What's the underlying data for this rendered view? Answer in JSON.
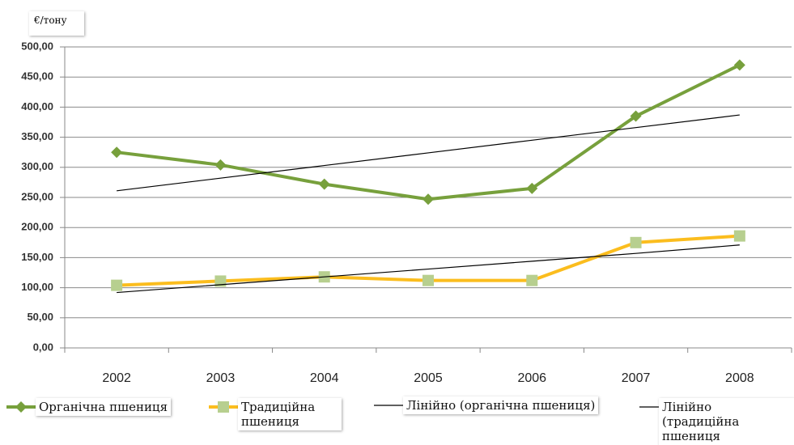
{
  "chart_data": {
    "type": "line",
    "y_label": "€/тону",
    "categories": [
      "2002",
      "2003",
      "2004",
      "2005",
      "2006",
      "2007",
      "2008"
    ],
    "series": [
      {
        "name": "Органічна пшениця",
        "color": "#77a03c",
        "marker": "diamond",
        "marker_color": "#77a03c",
        "values": [
          325,
          304,
          272,
          247,
          265,
          385,
          470
        ]
      },
      {
        "name": "Традиційна пшениця",
        "color": "#fbbd1e",
        "marker": "square",
        "marker_color": "#b7cf8f",
        "values": [
          104,
          111,
          118,
          112,
          112,
          175,
          186
        ]
      },
      {
        "name": "Лінійно (органічна пшениця)",
        "color": "#000000",
        "marker": "none",
        "values": [
          261,
          282,
          303,
          324,
          345,
          366,
          387
        ]
      },
      {
        "name": "Лінійно (традиційна пшениця",
        "color": "#000000",
        "marker": "none",
        "values": [
          92,
          105,
          118,
          131,
          144,
          157,
          171
        ]
      }
    ],
    "ylim": [
      0,
      500
    ],
    "yticks": [
      {
        "value": 0,
        "label": "0,00"
      },
      {
        "value": 50,
        "label": "50,00"
      },
      {
        "value": 100,
        "label": "100,00"
      },
      {
        "value": 150,
        "label": "150,00"
      },
      {
        "value": 200,
        "label": "200,00"
      },
      {
        "value": 250,
        "label": "250,00"
      },
      {
        "value": 300,
        "label": "300,00"
      },
      {
        "value": 350,
        "label": "350,00"
      },
      {
        "value": 400,
        "label": "400,00"
      },
      {
        "value": 450,
        "label": "450,00"
      },
      {
        "value": 500,
        "label": "500,00"
      }
    ],
    "grid": true
  }
}
